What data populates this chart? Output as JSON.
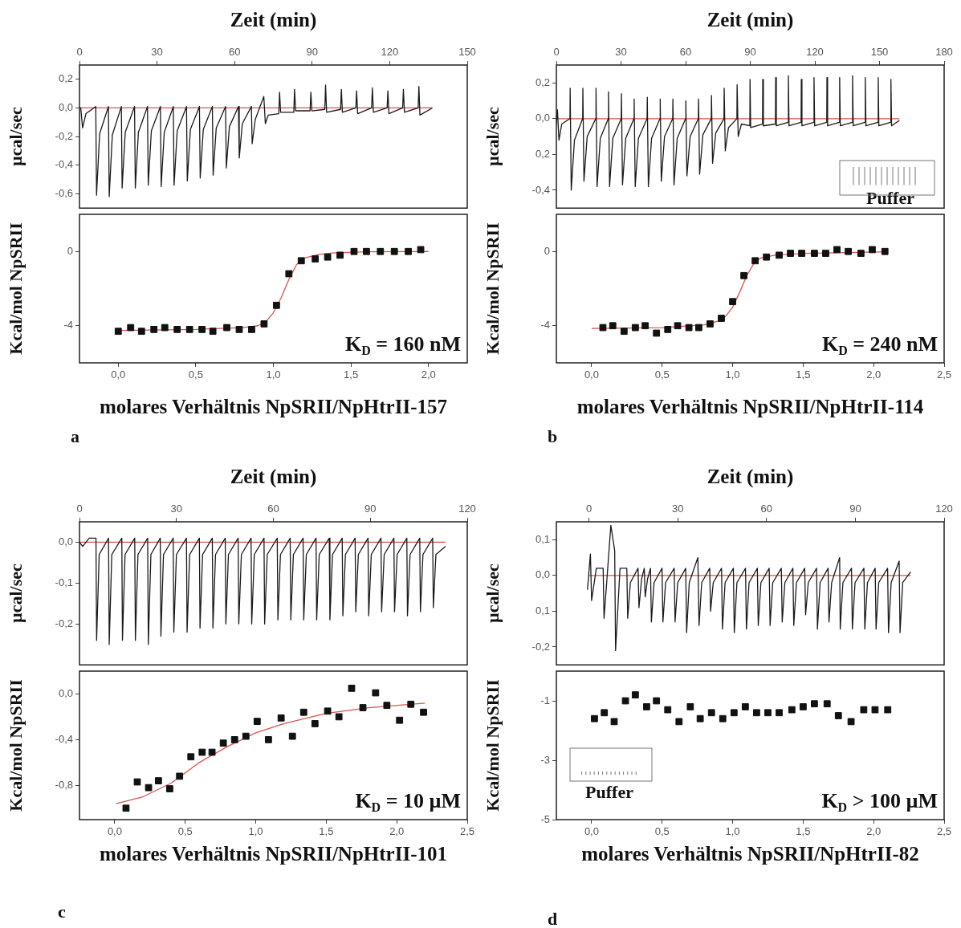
{
  "chart_data": [
    {
      "type": "line",
      "xlabel": "Zeit (min)",
      "ylabel": "µcal/sec",
      "xlim": [
        0,
        150
      ],
      "xticks": [
        0,
        30,
        60,
        90,
        120,
        150
      ],
      "ylim": [
        -0.7,
        0.3
      ],
      "yticks": [
        {
          "value": 0.2,
          "label": "0,2"
        },
        {
          "value": 0,
          "label": "0,0"
        },
        {
          "value": -0.2,
          "label": "-0,2"
        },
        {
          "value": -0.4,
          "label": "-0,4"
        },
        {
          "value": -0.6,
          "label": "-0,6"
        }
      ],
      "series": [
        {
          "color": "#1a1a1a",
          "x": [
            0,
            0.5,
            1.2,
            2.5,
            6.3,
            6.6,
            7.8,
            11.2,
            11.5,
            12.7,
            16.2,
            16.5,
            17.7,
            21.3,
            21.6,
            22.8,
            26.3,
            26.6,
            27.8,
            31.3,
            31.6,
            32.8,
            36.3,
            36.6,
            37.8,
            41.4,
            41.7,
            42.9,
            46.4,
            46.7,
            47.9,
            51.4,
            51.7,
            52.9,
            56.5,
            56.8,
            58.0,
            61.5,
            61.8,
            63.0,
            66.5,
            66.8,
            68.0,
            71.3,
            71.9,
            73.0,
            77.1,
            77.4,
            77.8,
            82.9,
            83.2,
            83.6,
            89.2,
            89.5,
            89.9,
            94.9,
            95.2,
            95.6,
            101.0,
            101.3,
            101.7,
            106.9,
            107.2,
            107.6,
            113.0,
            113.3,
            113.7,
            119.0,
            119.3,
            119.7,
            125.0,
            125.3,
            125.7,
            131.0,
            131.3,
            131.7,
            136.5
          ],
          "values": [
            0,
            0,
            -0.14,
            -0.04,
            0.01,
            -0.61,
            -0.18,
            0.01,
            -0.62,
            -0.19,
            0.01,
            -0.56,
            -0.17,
            0.01,
            -0.56,
            -0.17,
            0.01,
            -0.54,
            -0.16,
            0.01,
            -0.55,
            -0.17,
            0.01,
            -0.54,
            -0.16,
            0.01,
            -0.51,
            -0.15,
            0.01,
            -0.49,
            -0.15,
            0.01,
            -0.47,
            -0.14,
            0.01,
            -0.42,
            -0.13,
            0.01,
            -0.35,
            -0.11,
            0.01,
            -0.25,
            -0.08,
            0.08,
            -0.11,
            -0.05,
            -0.04,
            0.11,
            -0.03,
            -0.03,
            0.13,
            -0.02,
            -0.02,
            0.11,
            -0.02,
            -0.01,
            0.16,
            -0.03,
            -0.01,
            0.13,
            -0.03,
            0,
            0.12,
            -0.04,
            0,
            0.14,
            -0.03,
            0,
            0.12,
            -0.04,
            0,
            0.13,
            -0.03,
            0,
            0.15,
            -0.05,
            0
          ]
        },
        {
          "color": "#d9534f",
          "x": [
            0,
            136.5
          ],
          "values": [
            0,
            0
          ]
        }
      ]
    },
    {
      "type": "scatter",
      "marker": "square",
      "xlabel": "molares Verhältnis NpSRII/NpHtrII-157",
      "ylabel": "Kcal/mol NpSRII",
      "xlim": [
        -0.25,
        2.25
      ],
      "xticks": [
        {
          "value": 0,
          "label": "0,0"
        },
        {
          "value": 0.5,
          "label": "0,5"
        },
        {
          "value": 1,
          "label": "1,0"
        },
        {
          "value": 1.5,
          "label": "1,5"
        },
        {
          "value": 2,
          "label": "2,0"
        }
      ],
      "ylim": [
        -6,
        2
      ],
      "yticks": [
        0,
        -4
      ],
      "annotations": [
        "K$_{D}$ = 160 nM",
        "a"
      ],
      "series": [
        {
          "color": "#111111",
          "x": [
            0.0,
            0.08,
            0.15,
            0.23,
            0.3,
            0.38,
            0.46,
            0.54,
            0.61,
            0.7,
            0.78,
            0.86,
            0.94,
            1.02,
            1.1,
            1.18,
            1.27,
            1.35,
            1.43,
            1.52,
            1.6,
            1.69,
            1.78,
            1.87,
            1.95
          ],
          "values": [
            -4.3,
            -4.1,
            -4.3,
            -4.2,
            -4.1,
            -4.2,
            -4.2,
            -4.2,
            -4.3,
            -4.1,
            -4.2,
            -4.2,
            -3.9,
            -2.9,
            -1.2,
            -0.5,
            -0.4,
            -0.3,
            -0.2,
            0.0,
            0.0,
            0.0,
            0.0,
            0.0,
            0.1
          ]
        },
        {
          "type": "line",
          "marker": "none",
          "color": "#d9534f",
          "x": [
            0,
            0.5,
            0.8,
            0.9,
            0.95,
            1.0,
            1.05,
            1.1,
            1.15,
            1.2,
            1.3,
            1.4,
            1.6,
            2.0
          ],
          "values": [
            -4.25,
            -4.2,
            -4.1,
            -4.0,
            -3.8,
            -3.3,
            -2.5,
            -1.5,
            -0.7,
            -0.35,
            -0.15,
            -0.07,
            -0.02,
            0
          ]
        }
      ]
    },
    {
      "type": "line",
      "xlabel": "Zeit (min)",
      "ylabel": "µcal/sec",
      "xlim": [
        0,
        180
      ],
      "xticks": [
        0,
        30,
        60,
        90,
        120,
        150,
        180
      ],
      "ylim": [
        -0.5,
        0.3
      ],
      "yticks": [
        {
          "value": 0.2,
          "label": "0,2"
        },
        {
          "value": 0,
          "label": "0,0"
        },
        {
          "value": -0.2,
          "label": "0,2"
        },
        {
          "value": -0.4,
          "label": "-0,4"
        }
      ],
      "annotations": [
        "Puffer"
      ],
      "series": [
        {
          "color": "#1a1a1a",
          "x": [
            0,
            0.5,
            1.2,
            2.5,
            6.3,
            6.4,
            6.9,
            8.4,
            12.2,
            12.3,
            12.8,
            14.3,
            18.3,
            18.4,
            18.9,
            20.4,
            24.1,
            24.2,
            24.7,
            26.2,
            30.1,
            30.2,
            30.7,
            32.2,
            36.0,
            36.1,
            36.6,
            38.1,
            42.1,
            42.2,
            42.7,
            44.2,
            48.1,
            48.2,
            48.7,
            50.2,
            54.0,
            54.1,
            54.6,
            56.1,
            60.0,
            60.1,
            60.6,
            62.1,
            65.9,
            66.0,
            66.5,
            68.0,
            71.9,
            72.0,
            72.5,
            74.0,
            77.8,
            77.9,
            78.4,
            79.9,
            83.8,
            83.9,
            84.4,
            85.9,
            89.8,
            89.9,
            90.2,
            95.7,
            95.8,
            96.1,
            101.7,
            101.8,
            102.1,
            107.6,
            107.7,
            108.0,
            113.6,
            113.7,
            114.0,
            119.5,
            119.6,
            119.9,
            125.5,
            125.6,
            125.9,
            131.4,
            131.5,
            131.8,
            137.4,
            137.5,
            137.8,
            143.3,
            143.4,
            143.7,
            149.3,
            149.4,
            149.7,
            155.2,
            155.3,
            155.6,
            159.2
          ],
          "values": [
            -0.03,
            0.05,
            -0.12,
            -0.03,
            0,
            0.17,
            -0.4,
            -0.12,
            0,
            0.17,
            -0.35,
            -0.1,
            0,
            0.17,
            -0.38,
            -0.11,
            0,
            0.15,
            -0.38,
            -0.11,
            0,
            0.14,
            -0.37,
            -0.11,
            0,
            0.11,
            -0.38,
            -0.11,
            0,
            0.12,
            -0.38,
            -0.11,
            0,
            0.11,
            -0.35,
            -0.1,
            0,
            0.11,
            -0.37,
            -0.11,
            0,
            0.1,
            -0.32,
            -0.1,
            0,
            0.11,
            -0.31,
            -0.09,
            0,
            0.13,
            -0.25,
            -0.08,
            0,
            0.17,
            -0.18,
            -0.05,
            0,
            0.19,
            -0.1,
            -0.03,
            -0.04,
            0.22,
            -0.05,
            -0.03,
            0.22,
            -0.04,
            -0.03,
            0.23,
            -0.04,
            -0.02,
            0.24,
            -0.04,
            -0.02,
            0.22,
            -0.04,
            -0.02,
            0.23,
            -0.04,
            -0.02,
            0.23,
            -0.04,
            -0.02,
            0.23,
            -0.04,
            -0.02,
            0.24,
            -0.04,
            -0.02,
            0.23,
            -0.04,
            -0.02,
            0.23,
            -0.04,
            -0.02,
            0.22,
            -0.04,
            -0.01
          ]
        },
        {
          "color": "#d9534f",
          "x": [
            0,
            159.2
          ],
          "values": [
            0,
            0
          ]
        }
      ]
    },
    {
      "type": "scatter",
      "marker": "square",
      "xlabel": "molares Verhältnis NpSRII/NpHtrII-114",
      "ylabel": "Kcal/mol NpSRII",
      "xlim": [
        -0.25,
        2.5
      ],
      "xticks": [
        {
          "value": 0,
          "label": "0,0"
        },
        {
          "value": 0.5,
          "label": "0,5"
        },
        {
          "value": 1,
          "label": "1,0"
        },
        {
          "value": 1.5,
          "label": "1,5"
        },
        {
          "value": 2,
          "label": "2,0"
        },
        {
          "value": 2.5,
          "label": "2,5"
        }
      ],
      "ylim": [
        -6,
        2
      ],
      "yticks": [
        0,
        -4
      ],
      "annotations": [
        "K$_{D}$ = 240 nM",
        "b"
      ],
      "series": [
        {
          "color": "#111111",
          "x": [
            0.08,
            0.15,
            0.23,
            0.31,
            0.38,
            0.46,
            0.54,
            0.61,
            0.69,
            0.76,
            0.84,
            0.92,
            1.0,
            1.08,
            1.16,
            1.24,
            1.33,
            1.41,
            1.49,
            1.58,
            1.66,
            1.74,
            1.82,
            1.91,
            1.99,
            2.08
          ],
          "values": [
            -4.1,
            -4.0,
            -4.3,
            -4.1,
            -4.0,
            -4.4,
            -4.2,
            -4.0,
            -4.1,
            -4.1,
            -3.9,
            -3.6,
            -2.7,
            -1.3,
            -0.5,
            -0.3,
            -0.2,
            -0.1,
            -0.1,
            -0.1,
            -0.1,
            0.1,
            0.0,
            -0.1,
            0.1,
            0.0
          ]
        },
        {
          "type": "line",
          "marker": "none",
          "color": "#d9534f",
          "x": [
            0,
            0.5,
            0.8,
            0.9,
            0.95,
            1.0,
            1.05,
            1.1,
            1.15,
            1.2,
            1.3,
            1.5,
            2.1
          ],
          "values": [
            -4.15,
            -4.1,
            -3.95,
            -3.75,
            -3.5,
            -3.0,
            -2.2,
            -1.3,
            -0.65,
            -0.35,
            -0.2,
            -0.1,
            -0.02
          ]
        }
      ]
    },
    {
      "type": "line",
      "xlabel": "Zeit (min)",
      "ylabel": "µcal/sec",
      "xlim": [
        0,
        120
      ],
      "xticks": [
        0,
        30,
        60,
        90,
        120
      ],
      "ylim": [
        -0.3,
        0.05
      ],
      "yticks": [
        {
          "value": 0,
          "label": "0,0"
        },
        {
          "value": -0.1,
          "label": "-0,1"
        },
        {
          "value": -0.2,
          "label": "-0,2"
        }
      ],
      "series": [
        {
          "color": "#1a1a1a",
          "x": [
            0,
            1,
            3,
            5.1,
            5.3,
            6.1,
            9.0,
            9.2,
            10.0,
            13.1,
            13.3,
            14.1,
            17.1,
            17.3,
            18.1,
            21.1,
            21.3,
            22.1,
            25.0,
            25.2,
            26.0,
            29.0,
            29.2,
            30.0,
            33.1,
            33.3,
            34.1,
            37.1,
            37.3,
            38.1,
            41.1,
            41.3,
            42.1,
            45.1,
            45.3,
            46.1,
            49.1,
            49.3,
            50.1,
            53.1,
            53.3,
            54.1,
            57.1,
            57.3,
            58.1,
            61.2,
            61.4,
            62.2,
            65.2,
            65.4,
            66.2,
            69.2,
            69.4,
            70.2,
            73.2,
            73.4,
            74.2,
            77.3,
            77.5,
            78.3,
            81.3,
            81.5,
            82.3,
            85.3,
            85.5,
            86.3,
            89.3,
            89.5,
            90.3,
            93.3,
            93.5,
            94.3,
            97.3,
            97.5,
            98.3,
            101.3,
            101.5,
            102.3,
            105.3,
            105.5,
            106.3,
            109.3,
            109.5,
            110.3,
            113.3
          ],
          "values": [
            0,
            -0.01,
            0.01,
            0.01,
            -0.24,
            -0.03,
            0.01,
            -0.25,
            -0.03,
            0.01,
            -0.24,
            -0.03,
            0.01,
            -0.24,
            -0.03,
            0.01,
            -0.25,
            -0.03,
            0.01,
            -0.23,
            -0.03,
            0.01,
            -0.22,
            -0.03,
            0.01,
            -0.22,
            -0.03,
            0.01,
            -0.21,
            -0.03,
            0.01,
            -0.21,
            -0.03,
            0.01,
            -0.2,
            -0.03,
            0.01,
            -0.2,
            -0.03,
            0.01,
            -0.2,
            -0.03,
            0.01,
            -0.2,
            -0.03,
            0.01,
            -0.19,
            -0.03,
            0.01,
            -0.19,
            -0.03,
            0.01,
            -0.19,
            -0.03,
            0.01,
            -0.19,
            -0.03,
            0.01,
            -0.19,
            -0.03,
            0.01,
            -0.18,
            -0.03,
            0.01,
            -0.17,
            -0.03,
            0.01,
            -0.18,
            -0.03,
            0.01,
            -0.17,
            -0.03,
            0.01,
            -0.17,
            -0.03,
            0.01,
            -0.18,
            -0.03,
            0.01,
            -0.17,
            -0.03,
            0.01,
            -0.16,
            -0.03,
            -0.01
          ]
        },
        {
          "color": "#d9534f",
          "x": [
            0,
            113.3
          ],
          "values": [
            0,
            0
          ]
        }
      ]
    },
    {
      "type": "scatter",
      "marker": "square",
      "xlabel": "molares Verhältnis NpSRII/NpHtrII-101",
      "ylabel": "Kcal/mol NpSRII",
      "xlim": [
        -0.25,
        2.5
      ],
      "xticks": [
        {
          "value": 0,
          "label": "0,0"
        },
        {
          "value": 0.5,
          "label": "0,5"
        },
        {
          "value": 1,
          "label": "1,0"
        },
        {
          "value": 1.5,
          "label": "1,5"
        },
        {
          "value": 2,
          "label": "2,0"
        },
        {
          "value": 2.5,
          "label": "2,5"
        }
      ],
      "ylim": [
        -1.1,
        0.2
      ],
      "yticks": [
        {
          "value": 0,
          "label": "0,0"
        },
        {
          "value": -0.4,
          "label": "-0,4"
        },
        {
          "value": -0.8,
          "label": "-0,8"
        }
      ],
      "annotations": [
        "K$_{D}$ = 10 µM",
        "c"
      ],
      "series": [
        {
          "color": "#111111",
          "x": [
            0.08,
            0.16,
            0.24,
            0.31,
            0.39,
            0.46,
            0.54,
            0.62,
            0.69,
            0.77,
            0.85,
            0.93,
            1.01,
            1.09,
            1.18,
            1.26,
            1.34,
            1.42,
            1.51,
            1.59,
            1.68,
            1.76,
            1.85,
            1.93,
            2.02,
            2.1,
            2.19
          ],
          "values": [
            -1.0,
            -0.77,
            -0.82,
            -0.76,
            -0.83,
            -0.72,
            -0.55,
            -0.51,
            -0.51,
            -0.43,
            -0.4,
            -0.37,
            -0.24,
            -0.4,
            -0.21,
            -0.37,
            -0.16,
            -0.26,
            -0.15,
            -0.2,
            0.05,
            -0.12,
            0.01,
            -0.1,
            -0.23,
            -0.09,
            -0.16
          ]
        },
        {
          "type": "line",
          "marker": "none",
          "color": "#d9534f",
          "x": [
            0.01,
            0.2,
            0.4,
            0.5,
            0.6,
            0.8,
            1.0,
            1.2,
            1.5,
            1.8,
            2.2
          ],
          "values": [
            -0.96,
            -0.9,
            -0.78,
            -0.69,
            -0.6,
            -0.46,
            -0.34,
            -0.26,
            -0.17,
            -0.12,
            -0.08
          ]
        }
      ]
    },
    {
      "type": "line",
      "xlabel": "Zeit (min)",
      "ylabel": "µcal/sec",
      "xlim": [
        -11,
        120
      ],
      "xticks": [
        0,
        30,
        60,
        90,
        120
      ],
      "ylim": [
        -0.25,
        0.15
      ],
      "yticks": [
        {
          "value": 0.1,
          "label": "0,1"
        },
        {
          "value": 0,
          "label": "0,0"
        },
        {
          "value": -0.1,
          "label": "0,1"
        },
        {
          "value": -0.2,
          "label": "-0,2"
        }
      ],
      "series": [
        {
          "color": "#1a1a1a",
          "x": [
            -0.5,
            0.5,
            0.9,
            2.5,
            4.8,
            5.1,
            6.0,
            7.4,
            8.7,
            9.0,
            10.5,
            12.8,
            13.1,
            14.0,
            16.6,
            16.9,
            17.8,
            18.7,
            19.0,
            19.8,
            20.8,
            21.1,
            22.0,
            24.7,
            25.0,
            25.9,
            28.8,
            29.1,
            30.0,
            32.7,
            33.0,
            33.9,
            36.8,
            37.2,
            38.1,
            40.8,
            41.1,
            42.0,
            44.8,
            45.1,
            46.0,
            48.8,
            49.1,
            50.0,
            52.9,
            53.2,
            54.1,
            56.9,
            57.2,
            58.1,
            60.9,
            61.2,
            62.1,
            65.0,
            65.3,
            66.2,
            68.9,
            69.2,
            70.1,
            72.9,
            73.2,
            74.1,
            76.9,
            77.2,
            78.1,
            80.8,
            81.1,
            82.0,
            84.7,
            84.9,
            85.8,
            88.7,
            89.0,
            89.9,
            92.9,
            93.2,
            94.1,
            96.7,
            97.0,
            97.9,
            100.9,
            101.2,
            102.1,
            104.8,
            105.1,
            106.0,
            108.7
          ],
          "values": [
            -0.04,
            0.06,
            -0.07,
            0.02,
            0.02,
            -0.12,
            -0.02,
            0.14,
            0.07,
            -0.21,
            0.02,
            0.02,
            -0.12,
            -0.02,
            0.02,
            -0.09,
            -0.01,
            0.02,
            -0.06,
            -0.01,
            0.02,
            -0.13,
            -0.02,
            0.02,
            -0.13,
            -0.02,
            0.02,
            -0.13,
            -0.02,
            0.02,
            -0.16,
            -0.02,
            0.05,
            -0.14,
            -0.02,
            0.02,
            -0.1,
            -0.02,
            0.02,
            -0.15,
            -0.02,
            0.02,
            -0.16,
            -0.02,
            0.02,
            -0.15,
            -0.02,
            0.02,
            -0.14,
            -0.02,
            0.02,
            -0.14,
            -0.02,
            0.02,
            -0.13,
            -0.02,
            0.02,
            -0.14,
            -0.02,
            0.02,
            -0.11,
            -0.02,
            0.02,
            -0.15,
            -0.02,
            0.02,
            -0.13,
            -0.02,
            0.05,
            -0.15,
            -0.02,
            0.02,
            -0.15,
            -0.02,
            0.02,
            -0.15,
            -0.02,
            0.02,
            -0.15,
            -0.02,
            0.02,
            -0.16,
            -0.02,
            0.04,
            -0.16,
            -0.02,
            0.01
          ]
        },
        {
          "color": "#d9534f",
          "x": [
            0,
            108.7
          ],
          "values": [
            0,
            0
          ]
        }
      ]
    },
    {
      "type": "scatter",
      "marker": "square",
      "xlabel": "molares Verhältnis NpSRII/NpHtrII-82",
      "ylabel": "Kcal/mol NpSRII",
      "xlim": [
        -0.25,
        2.5
      ],
      "xticks": [
        {
          "value": 0,
          "label": "0,0"
        },
        {
          "value": 0.5,
          "label": "0,5"
        },
        {
          "value": 1,
          "label": "1,0"
        },
        {
          "value": 1.5,
          "label": "1,5"
        },
        {
          "value": 2,
          "label": "2,0"
        },
        {
          "value": 2.5,
          "label": "2,5"
        }
      ],
      "ylim": [
        -5,
        0
      ],
      "yticks": [
        -1,
        -3,
        -5
      ],
      "annotations": [
        "K$_{D}$ > 100 µM",
        "d",
        "Puffer"
      ],
      "series": [
        {
          "color": "#111111",
          "x": [
            0.02,
            0.09,
            0.16,
            0.24,
            0.31,
            0.39,
            0.46,
            0.54,
            0.62,
            0.7,
            0.77,
            0.85,
            0.93,
            1.01,
            1.09,
            1.17,
            1.25,
            1.33,
            1.42,
            1.5,
            1.58,
            1.67,
            1.75,
            1.84,
            1.93,
            2.01,
            2.1
          ],
          "values": [
            -1.6,
            -1.4,
            -1.7,
            -1.0,
            -0.8,
            -1.2,
            -1.0,
            -1.3,
            -1.7,
            -1.2,
            -1.6,
            -1.4,
            -1.6,
            -1.4,
            -1.2,
            -1.4,
            -1.4,
            -1.4,
            -1.3,
            -1.2,
            -1.1,
            -1.1,
            -1.5,
            -1.7,
            -1.3,
            -1.3,
            -1.3
          ]
        }
      ]
    }
  ]
}
